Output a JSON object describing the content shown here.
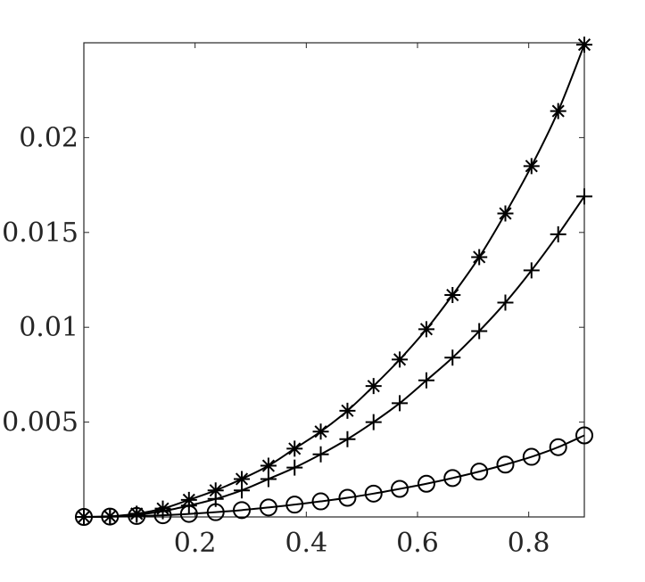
{
  "chart_data": {
    "type": "line",
    "title": "",
    "xlabel": "",
    "ylabel": "",
    "xlim": [
      0,
      0.9
    ],
    "ylim": [
      0,
      0.025
    ],
    "grid": false,
    "x_ticks": [
      0.2,
      0.4,
      0.6,
      0.8
    ],
    "x_tick_labels": [
      "0.2",
      "0.4",
      "0.6",
      "0.8"
    ],
    "y_ticks": [
      0.005,
      0.01,
      0.015,
      0.02
    ],
    "y_tick_labels": [
      "0.005",
      "0.01",
      "0.015",
      "0.02"
    ],
    "x": [
      0,
      0.047,
      0.095,
      0.142,
      0.189,
      0.237,
      0.284,
      0.332,
      0.379,
      0.426,
      0.474,
      0.521,
      0.568,
      0.616,
      0.663,
      0.711,
      0.758,
      0.805,
      0.853,
      0.9
    ],
    "series": [
      {
        "marker": "asterisk",
        "values": [
          0,
          3e-05,
          0.00017,
          0.00044,
          0.0009,
          0.0014,
          0.002,
          0.0027,
          0.0036,
          0.0045,
          0.0056,
          0.0069,
          0.0083,
          0.0099,
          0.0117,
          0.0137,
          0.016,
          0.0185,
          0.0214,
          0.0249
        ]
      },
      {
        "marker": "plus",
        "values": [
          0,
          2e-05,
          0.00012,
          0.0003,
          0.0006,
          0.00095,
          0.0014,
          0.002,
          0.0026,
          0.0033,
          0.0041,
          0.005,
          0.006,
          0.0072,
          0.0084,
          0.0098,
          0.0113,
          0.013,
          0.0149,
          0.0169
        ]
      },
      {
        "marker": "circle",
        "values": [
          0,
          2e-05,
          5e-05,
          9e-05,
          0.00016,
          0.00025,
          0.00036,
          0.0005,
          0.00065,
          0.00082,
          0.00101,
          0.00123,
          0.00148,
          0.00175,
          0.00205,
          0.00239,
          0.00276,
          0.00317,
          0.00368,
          0.0043
        ]
      }
    ]
  }
}
